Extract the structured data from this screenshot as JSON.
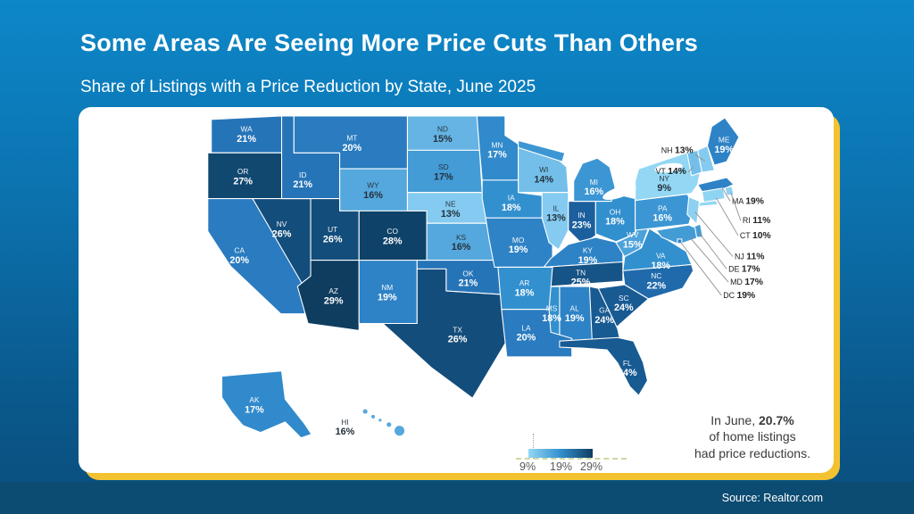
{
  "header": {
    "title": "Some Areas Are Seeing More Price Cuts Than Others",
    "subtitle": "Share of Listings with a Price Reduction by State, June 2025"
  },
  "annotation": {
    "line1_prefix": "In June, ",
    "line1_bold": "20.7%",
    "line2": "of home listings",
    "line3": "had price reductions."
  },
  "legend": {
    "ticks": [
      "9%",
      "19%",
      "29%"
    ]
  },
  "footer": {
    "source": "Source: Realtor.com"
  },
  "colors": {
    "background_top": "#0d87c9",
    "background_bottom": "#094e7c",
    "card": "#ffffff",
    "accent_yellow": "#f2c230",
    "footer_bar": "#0c4b72",
    "scale_min_color": "#93d7f4",
    "scale_max_color": "#0e3d60",
    "state_border": "#ffffff",
    "dark_label": "#25303b",
    "light_label": "#ffffff"
  },
  "chart_data": {
    "type": "choropleth_map",
    "title": "Some Areas Are Seeing More Price Cuts Than Others",
    "subtitle": "Share of Listings with a Price Reduction by State, June 2025",
    "unit": "%",
    "value_range": [
      9,
      29
    ],
    "legend_ticks": [
      9,
      19,
      29
    ],
    "national_average": 20.7,
    "states": [
      {
        "id": "WA",
        "value": 21
      },
      {
        "id": "OR",
        "value": 27
      },
      {
        "id": "CA",
        "value": 20
      },
      {
        "id": "NV",
        "value": 26
      },
      {
        "id": "ID",
        "value": 21
      },
      {
        "id": "MT",
        "value": 20
      },
      {
        "id": "WY",
        "value": 16
      },
      {
        "id": "UT",
        "value": 26
      },
      {
        "id": "CO",
        "value": 28
      },
      {
        "id": "AZ",
        "value": 29
      },
      {
        "id": "NM",
        "value": 19
      },
      {
        "id": "ND",
        "value": 15
      },
      {
        "id": "SD",
        "value": 17
      },
      {
        "id": "NE",
        "value": 13
      },
      {
        "id": "KS",
        "value": 16
      },
      {
        "id": "OK",
        "value": 21
      },
      {
        "id": "TX",
        "value": 26
      },
      {
        "id": "MN",
        "value": 17
      },
      {
        "id": "WI",
        "value": 14
      },
      {
        "id": "IA",
        "value": 18
      },
      {
        "id": "MO",
        "value": 19
      },
      {
        "id": "IL",
        "value": 13
      },
      {
        "id": "IN",
        "value": 23
      },
      {
        "id": "OH",
        "value": 18
      },
      {
        "id": "MI",
        "value": 16
      },
      {
        "id": "KY",
        "value": 19
      },
      {
        "id": "TN",
        "value": 25
      },
      {
        "id": "WV",
        "value": 15
      },
      {
        "id": "VA",
        "value": 18
      },
      {
        "id": "NC",
        "value": 22
      },
      {
        "id": "SC",
        "value": 24
      },
      {
        "id": "GA",
        "value": 24
      },
      {
        "id": "AL",
        "value": 19
      },
      {
        "id": "MS",
        "value": 18
      },
      {
        "id": "AR",
        "value": 18
      },
      {
        "id": "LA",
        "value": 20
      },
      {
        "id": "FL",
        "value": 24
      },
      {
        "id": "PA",
        "value": 16
      },
      {
        "id": "NY",
        "value": 9
      },
      {
        "id": "NJ",
        "value": 11,
        "callout": true
      },
      {
        "id": "DE",
        "value": 17,
        "callout": true
      },
      {
        "id": "MD",
        "value": 17,
        "callout": true
      },
      {
        "id": "DC",
        "value": 19,
        "callout": true
      },
      {
        "id": "VT",
        "value": 14,
        "callout": true
      },
      {
        "id": "NH",
        "value": 13,
        "callout": true
      },
      {
        "id": "ME",
        "value": 19
      },
      {
        "id": "MA",
        "value": 19,
        "callout": true
      },
      {
        "id": "RI",
        "value": 11,
        "callout": true
      },
      {
        "id": "CT",
        "value": 10,
        "callout": true
      },
      {
        "id": "AK",
        "value": 17
      },
      {
        "id": "HI",
        "value": 16
      }
    ],
    "dark_label_states": [
      "ND",
      "SD",
      "NE",
      "KS",
      "WY",
      "WI",
      "IL",
      "NY",
      "HI"
    ]
  }
}
